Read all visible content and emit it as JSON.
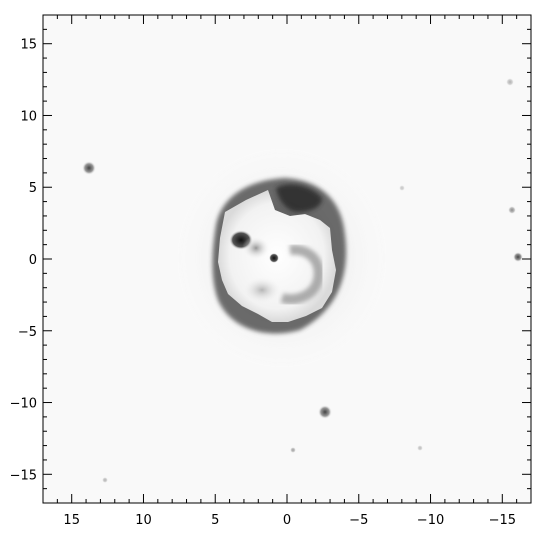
{
  "image": {
    "description_kind": "astronomical grayscale image",
    "colormap": "inverted grayscale (dark = bright emission)"
  },
  "axes": {
    "x": {
      "range": [
        17,
        -17
      ],
      "tick_labels": [
        "15",
        "10",
        "5",
        "0",
        "−5",
        "−10",
        "−15"
      ],
      "tick_values": [
        15,
        10,
        5,
        0,
        -5,
        -10,
        -15
      ],
      "minor_step": 1
    },
    "y": {
      "range": [
        -17,
        17
      ],
      "tick_labels": [
        "−15",
        "−10",
        "−5",
        "0",
        "5",
        "10",
        "15"
      ],
      "tick_values": [
        -15,
        -10,
        -5,
        0,
        5,
        10,
        15
      ],
      "minor_step": 1
    }
  },
  "colors": {
    "frame": "#000000",
    "background": "#f9f9f9"
  }
}
